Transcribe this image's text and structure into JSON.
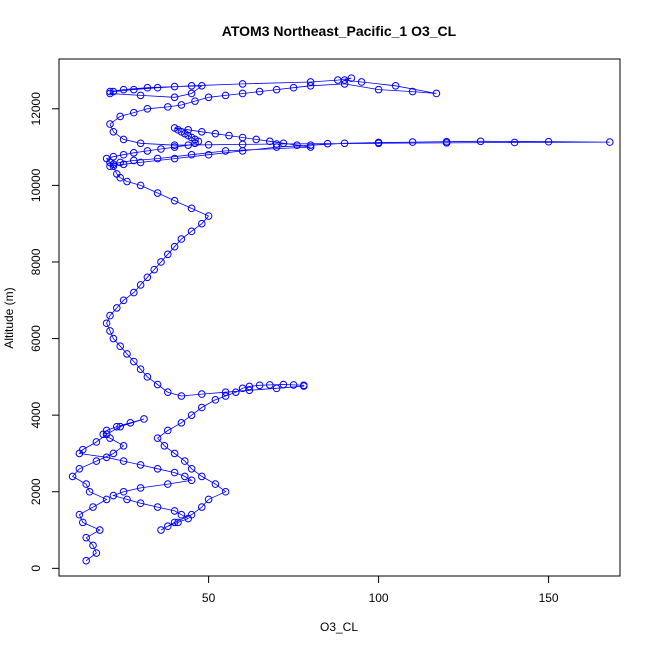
{
  "chart_data": {
    "type": "scatter",
    "title": "ATOM3 Northeast_Pacific_1 O3_CL",
    "xlabel": "O3_CL",
    "ylabel": "Altitude (m)",
    "xlim": [
      6,
      171
    ],
    "ylim": [
      -200,
      13300
    ],
    "x_ticks": [
      50,
      100,
      150
    ],
    "y_ticks": [
      0,
      2000,
      4000,
      6000,
      8000,
      10000,
      12000
    ],
    "grid": false,
    "legend": "none",
    "marker": "open-circle",
    "connected": true,
    "series": [
      {
        "color": "#0000ff",
        "x": [
          14,
          17,
          16,
          14,
          18,
          13,
          12,
          16,
          20,
          15,
          14,
          10,
          12,
          17,
          22,
          25,
          21,
          19,
          20,
          23,
          27,
          31,
          24,
          20,
          17,
          13,
          12,
          20,
          25,
          30,
          35,
          40,
          43,
          45,
          38,
          30,
          25,
          22,
          26,
          30,
          35,
          40,
          42,
          44,
          41,
          38,
          36,
          40,
          45,
          48,
          50,
          55,
          52,
          48,
          45,
          43,
          40,
          37,
          35,
          38,
          42,
          45,
          48,
          52,
          55,
          58,
          60,
          62,
          65,
          68,
          72,
          75,
          78,
          78,
          70,
          62,
          55,
          48,
          42,
          38,
          35,
          32,
          30,
          28,
          26,
          24,
          22,
          21,
          20,
          21,
          23,
          25,
          28,
          30,
          32,
          34,
          36,
          38,
          40,
          42,
          45,
          48,
          50,
          45,
          40,
          35,
          30,
          26,
          24,
          23,
          22,
          21,
          20,
          22,
          25,
          28,
          32,
          36,
          40,
          44,
          46,
          47,
          46,
          45,
          44,
          43,
          42,
          41,
          40,
          44,
          48,
          52,
          56,
          60,
          64,
          68,
          72,
          76,
          80,
          55,
          45,
          35,
          28,
          24,
          22,
          21,
          25,
          30,
          40,
          50,
          60,
          70,
          80,
          90,
          100,
          110,
          120,
          130,
          150,
          168,
          140,
          120,
          100,
          85,
          70,
          60,
          50,
          40,
          30,
          25,
          22,
          21,
          24,
          28,
          32,
          38,
          42,
          46,
          50,
          55,
          60,
          65,
          70,
          75,
          80,
          90,
          100,
          110,
          117,
          105,
          95,
          90,
          92,
          88,
          80,
          60,
          45,
          35,
          28,
          22,
          21,
          30,
          40,
          45,
          48,
          40,
          32,
          25,
          21
        ],
        "y": [
          200,
          400,
          600,
          800,
          1000,
          1200,
          1400,
          1600,
          1800,
          2000,
          2200,
          2400,
          2600,
          2800,
          3000,
          3200,
          3400,
          3500,
          3600,
          3700,
          3800,
          3900,
          3700,
          3500,
          3300,
          3100,
          3000,
          2900,
          2800,
          2700,
          2600,
          2500,
          2400,
          2300,
          2200,
          2100,
          2000,
          1900,
          1800,
          1700,
          1600,
          1500,
          1400,
          1300,
          1200,
          1100,
          1000,
          1200,
          1400,
          1600,
          1800,
          2000,
          2200,
          2400,
          2600,
          2800,
          3000,
          3200,
          3400,
          3600,
          3800,
          4000,
          4200,
          4400,
          4500,
          4600,
          4700,
          4750,
          4780,
          4790,
          4800,
          4790,
          4780,
          4760,
          4700,
          4650,
          4600,
          4550,
          4500,
          4600,
          4800,
          5000,
          5200,
          5400,
          5600,
          5800,
          6000,
          6200,
          6400,
          6600,
          6800,
          7000,
          7200,
          7400,
          7600,
          7800,
          8000,
          8200,
          8400,
          8600,
          8800,
          9000,
          9200,
          9400,
          9600,
          9800,
          10000,
          10100,
          10200,
          10300,
          10500,
          10600,
          10700,
          10750,
          10800,
          10850,
          10900,
          10950,
          11000,
          11050,
          11100,
          11150,
          11200,
          11250,
          11300,
          11350,
          11400,
          11450,
          11500,
          11450,
          11400,
          11350,
          11300,
          11250,
          11200,
          11150,
          11100,
          11050,
          11000,
          10900,
          10800,
          10700,
          10650,
          10600,
          10550,
          10500,
          10550,
          10600,
          10700,
          10800,
          10900,
          11000,
          11050,
          11100,
          11120,
          11130,
          11140,
          11150,
          11140,
          11130,
          11120,
          11110,
          11100,
          11090,
          11080,
          11070,
          11060,
          11050,
          11100,
          11200,
          11400,
          11600,
          11800,
          11900,
          12000,
          12050,
          12100,
          12200,
          12300,
          12350,
          12400,
          12450,
          12500,
          12550,
          12600,
          12650,
          12500,
          12450,
          12400,
          12600,
          12700,
          12750,
          12800,
          12750,
          12700,
          12650,
          12600,
          12550,
          12500,
          12450,
          12400,
          12350,
          12300,
          12400,
          12600,
          12580,
          12550,
          12500,
          12450
        ]
      }
    ]
  }
}
